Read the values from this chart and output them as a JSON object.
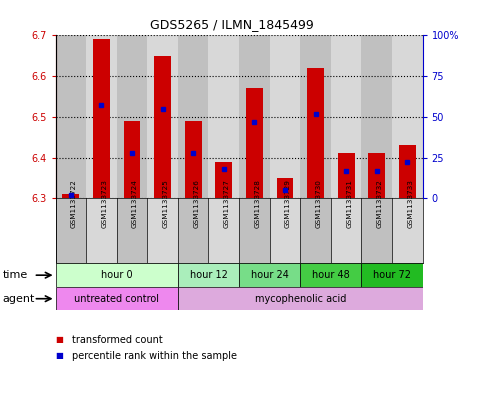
{
  "title": "GDS5265 / ILMN_1845499",
  "samples": [
    "GSM1133722",
    "GSM1133723",
    "GSM1133724",
    "GSM1133725",
    "GSM1133726",
    "GSM1133727",
    "GSM1133728",
    "GSM1133729",
    "GSM1133730",
    "GSM1133731",
    "GSM1133732",
    "GSM1133733"
  ],
  "transformed_count": [
    6.31,
    6.69,
    6.49,
    6.65,
    6.49,
    6.39,
    6.57,
    6.35,
    6.62,
    6.41,
    6.41,
    6.43
  ],
  "percentile_rank": [
    2,
    57,
    28,
    55,
    28,
    18,
    47,
    5,
    52,
    17,
    17,
    22
  ],
  "ylim_left": [
    6.3,
    6.7
  ],
  "ylim_right": [
    0,
    100
  ],
  "yticks_left": [
    6.3,
    6.4,
    6.5,
    6.6,
    6.7
  ],
  "yticks_right": [
    0,
    25,
    50,
    75,
    100
  ],
  "ytick_labels_right": [
    "0",
    "25",
    "50",
    "75",
    "100%"
  ],
  "left_axis_color": "#cc0000",
  "right_axis_color": "#0000cc",
  "bar_color": "#cc0000",
  "percentile_color": "#0000cc",
  "bar_width": 0.55,
  "col_colors": [
    "#c0c0c0",
    "#d8d8d8"
  ],
  "time_groups": [
    {
      "label": "hour 0",
      "start": 0,
      "end": 4,
      "color": "#ccffcc"
    },
    {
      "label": "hour 12",
      "start": 4,
      "end": 6,
      "color": "#aaeebb"
    },
    {
      "label": "hour 24",
      "start": 6,
      "end": 8,
      "color": "#77dd88"
    },
    {
      "label": "hour 48",
      "start": 8,
      "end": 10,
      "color": "#44cc44"
    },
    {
      "label": "hour 72",
      "start": 10,
      "end": 12,
      "color": "#22bb22"
    }
  ],
  "agent_groups": [
    {
      "label": "untreated control",
      "start": 0,
      "end": 4,
      "color": "#ee88ee"
    },
    {
      "label": "mycophenolic acid",
      "start": 4,
      "end": 12,
      "color": "#ddaadd"
    }
  ],
  "legend_bar_label": "transformed count",
  "legend_pct_label": "percentile rank within the sample",
  "time_label": "time",
  "agent_label": "agent"
}
